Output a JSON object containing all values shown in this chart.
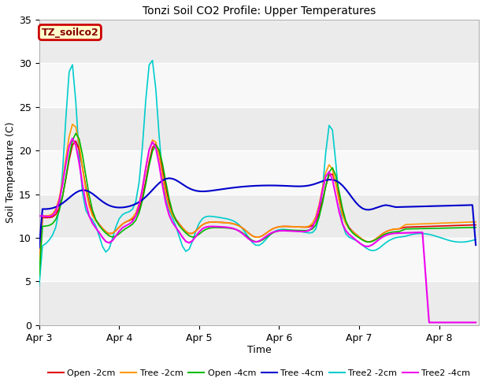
{
  "title": "Tonzi Soil CO2 Profile: Upper Temperatures",
  "xlabel": "Time",
  "ylabel": "Soil Temperature (C)",
  "ylim": [
    0,
    35
  ],
  "xlim": [
    0,
    5.5
  ],
  "xtick_positions": [
    0,
    1,
    2,
    3,
    4,
    5
  ],
  "xtick_labels": [
    "Apr 3",
    "Apr 4",
    "Apr 5",
    "Apr 6",
    "Apr 7",
    "Apr 8"
  ],
  "ytick_positions": [
    0,
    5,
    10,
    15,
    20,
    25,
    30,
    35
  ],
  "plot_bg_color": "#ffffff",
  "grid_color": "#e0e0e0",
  "series": {
    "Open -2cm": {
      "color": "#dd0000",
      "lw": 1.2
    },
    "Tree -2cm": {
      "color": "#ff9900",
      "lw": 1.2
    },
    "Open -4cm": {
      "color": "#00bb00",
      "lw": 1.2
    },
    "Tree -4cm": {
      "color": "#0000cc",
      "lw": 1.5
    },
    "Tree2 -2cm": {
      "color": "#00cccc",
      "lw": 1.2
    },
    "Tree2 -4cm": {
      "color": "#ee00ee",
      "lw": 1.5
    }
  },
  "box_label": "TZ_soilco2",
  "box_bg": "#ffffcc",
  "box_edge": "#cc0000",
  "box_text_color": "#880000",
  "figsize": [
    6.4,
    4.8
  ],
  "dpi": 100
}
